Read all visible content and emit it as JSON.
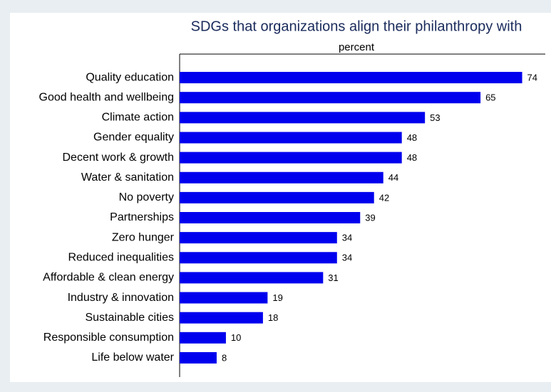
{
  "chart_data": {
    "type": "barh",
    "title": "SDGs that organizations align their philanthropy with",
    "subtitle": "percent",
    "categories": [
      "Quality education",
      "Good health and wellbeing",
      "Climate action",
      "Gender equality",
      "Decent work & growth",
      "Water & sanitation",
      "No poverty",
      "Partnerships",
      "Zero hunger",
      "Reduced inequalities",
      "Affordable & clean energy",
      "Industry & innovation",
      "Sustainable cities",
      "Responsible consumption",
      "Life below water"
    ],
    "values": [
      74,
      65,
      53,
      48,
      48,
      44,
      42,
      39,
      34,
      34,
      31,
      19,
      18,
      10,
      8
    ],
    "color": "#0000ee",
    "xlim": [
      0,
      79
    ]
  }
}
